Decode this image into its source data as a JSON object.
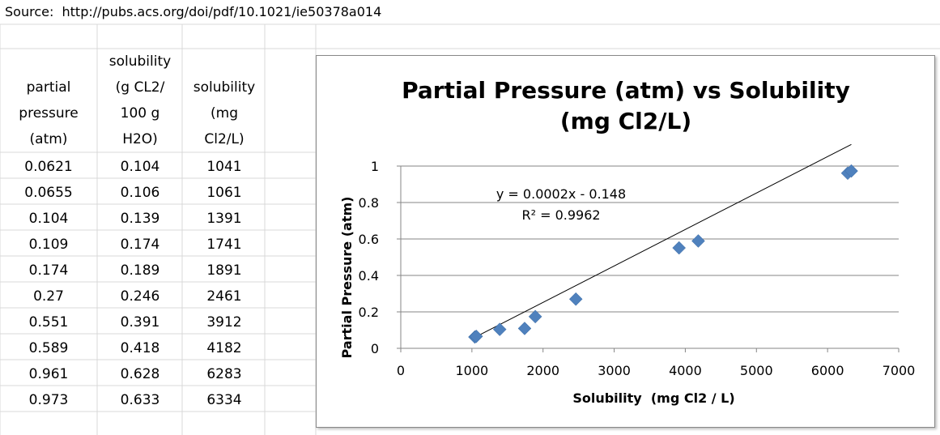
{
  "source": "Source:  http://pubs.acs.org/doi/pdf/10.1021/ie50378a014",
  "table": {
    "headers": [
      [
        "partial",
        "pressure",
        "(atm)"
      ],
      [
        "solubility",
        "(g CL2/",
        "100 g",
        "H2O)"
      ],
      [
        "solubility",
        "(mg",
        "Cl2/L)"
      ]
    ],
    "rows": [
      [
        "0.0621",
        "0.104",
        "1041"
      ],
      [
        "0.0655",
        "0.106",
        "1061"
      ],
      [
        "0.104",
        "0.139",
        "1391"
      ],
      [
        "0.109",
        "0.174",
        "1741"
      ],
      [
        "0.174",
        "0.189",
        "1891"
      ],
      [
        "0.27",
        "0.246",
        "2461"
      ],
      [
        "0.551",
        "0.391",
        "3912"
      ],
      [
        "0.589",
        "0.418",
        "4182"
      ],
      [
        "0.961",
        "0.628",
        "6283"
      ],
      [
        "0.973",
        "0.633",
        "6334"
      ]
    ]
  },
  "chart_data": {
    "type": "scatter",
    "title_lines": [
      "Partial Pressure (atm) vs Solubility",
      "(mg Cl2/L)"
    ],
    "xlabel": "Solubility  (mg Cl2 / L)",
    "ylabel": "Partial Pressure (atm)",
    "xlim": [
      0,
      7000
    ],
    "ylim": [
      0,
      1
    ],
    "xticks": [
      0,
      1000,
      2000,
      3000,
      4000,
      5000,
      6000,
      7000
    ],
    "yticks": [
      0,
      0.2,
      0.4,
      0.6,
      0.8,
      1
    ],
    "ytick_labels": [
      "0",
      "0.2",
      "0.4",
      "0.6",
      "0.8",
      "1"
    ],
    "x": [
      1041,
      1061,
      1391,
      1741,
      1891,
      2461,
      3912,
      4182,
      6283,
      6334
    ],
    "y": [
      0.0621,
      0.0655,
      0.104,
      0.109,
      0.174,
      0.27,
      0.551,
      0.589,
      0.961,
      0.973
    ],
    "marker_color": "#4f81bd",
    "gridlines": "horizontal",
    "trendline": {
      "slope": 0.0002,
      "intercept": -0.148,
      "x_range": [
        1041,
        6334
      ],
      "equation": "y = 0.0002x - 0.148",
      "r2": "R² = 0.9962"
    },
    "legend": "none"
  }
}
